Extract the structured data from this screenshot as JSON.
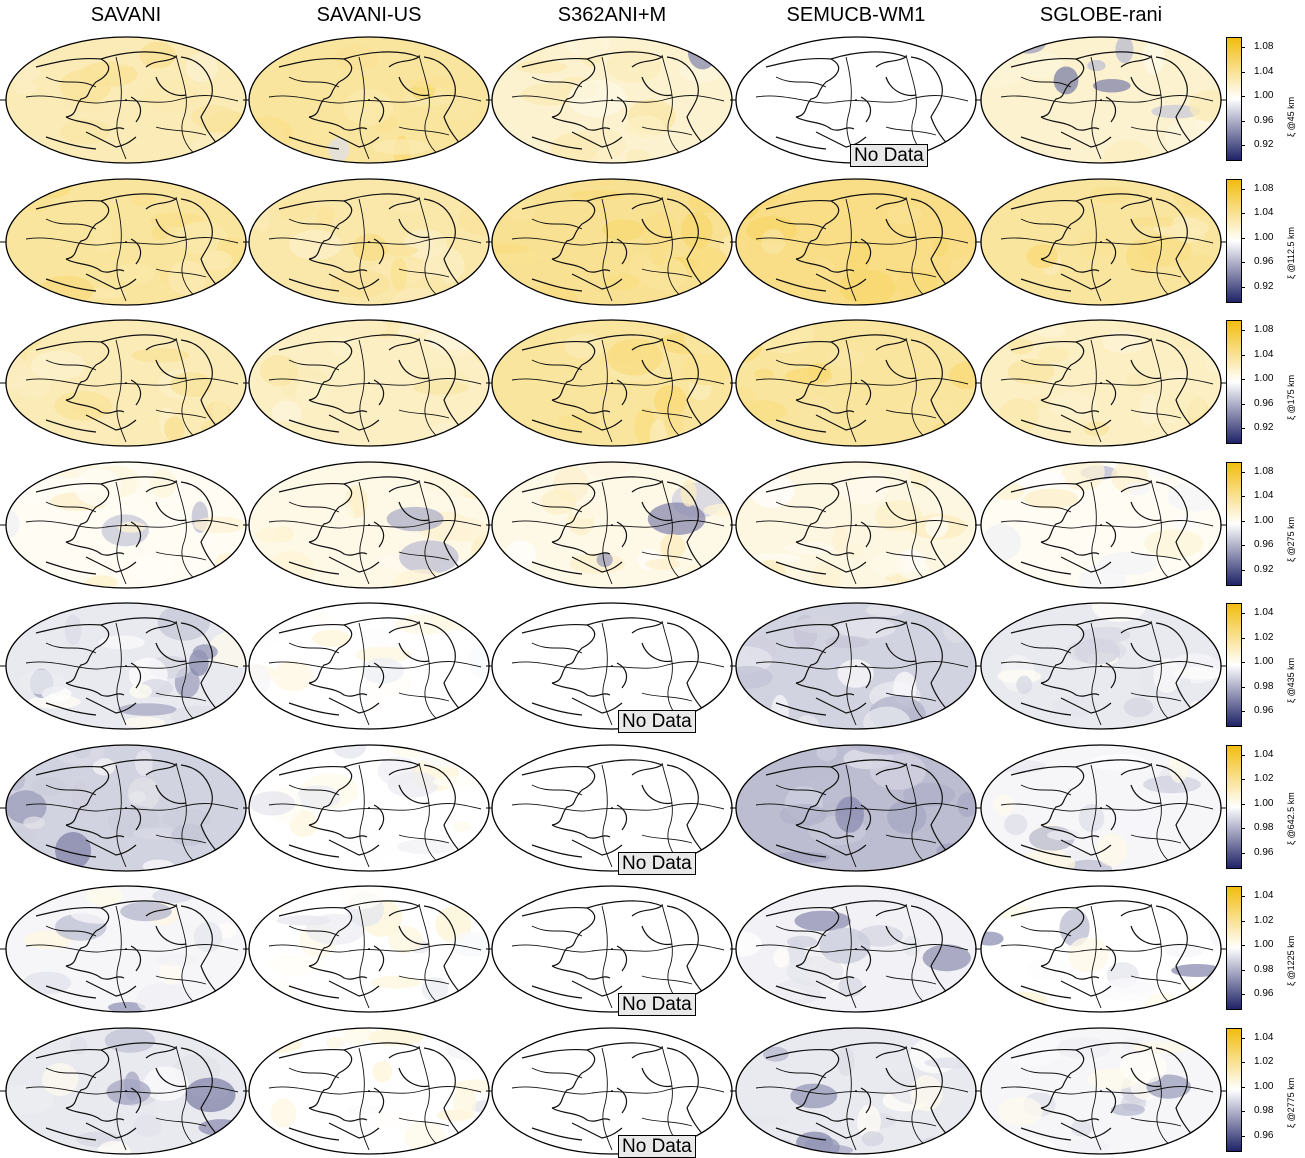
{
  "columns": [
    "SAVANI",
    "SAVANI-US",
    "S362ANI+M",
    "SEMUCB-WM1",
    "SGLOBE-rani"
  ],
  "no_data_label": "No Data",
  "colors": {
    "high": "#f2bd0f",
    "mid": "#ffffff",
    "low": "#1f2266"
  },
  "rows": [
    {
      "label": "ξ @45 km",
      "ticks": [
        "1.08",
        "1.04",
        "1.00",
        "0.96",
        "0.92"
      ],
      "range": [
        0.9,
        1.1
      ],
      "cells": [
        {
          "mean": 1.03,
          "blue": 0.05,
          "nodata": false
        },
        {
          "mean": 1.04,
          "blue": 0.02,
          "nodata": false
        },
        {
          "mean": 1.02,
          "blue": 0.15,
          "nodata": false
        },
        {
          "mean": 1.0,
          "blue": 0.0,
          "nodata": true
        },
        {
          "mean": 1.02,
          "blue": 0.45,
          "nodata": false
        }
      ]
    },
    {
      "label": "ξ @112.5 km",
      "ticks": [
        "1.08",
        "1.04",
        "1.00",
        "0.96",
        "0.92"
      ],
      "range": [
        0.9,
        1.1
      ],
      "cells": [
        {
          "mean": 1.04,
          "blue": 0.0,
          "nodata": false
        },
        {
          "mean": 1.035,
          "blue": 0.0,
          "nodata": false
        },
        {
          "mean": 1.045,
          "blue": 0.0,
          "nodata": false
        },
        {
          "mean": 1.05,
          "blue": 0.0,
          "nodata": false
        },
        {
          "mean": 1.04,
          "blue": 0.0,
          "nodata": false
        }
      ]
    },
    {
      "label": "ξ @175 km",
      "ticks": [
        "1.08",
        "1.04",
        "1.00",
        "0.96",
        "0.92"
      ],
      "range": [
        0.9,
        1.1
      ],
      "cells": [
        {
          "mean": 1.03,
          "blue": 0.0,
          "nodata": false
        },
        {
          "mean": 1.025,
          "blue": 0.02,
          "nodata": false
        },
        {
          "mean": 1.04,
          "blue": 0.0,
          "nodata": false
        },
        {
          "mean": 1.04,
          "blue": 0.0,
          "nodata": false
        },
        {
          "mean": 1.025,
          "blue": 0.0,
          "nodata": false
        }
      ]
    },
    {
      "label": "ξ @275 km",
      "ticks": [
        "1.08",
        "1.04",
        "1.00",
        "0.96",
        "0.92"
      ],
      "range": [
        0.9,
        1.1
      ],
      "cells": [
        {
          "mean": 1.005,
          "blue": 0.1,
          "nodata": false
        },
        {
          "mean": 1.01,
          "blue": 0.1,
          "nodata": false
        },
        {
          "mean": 1.01,
          "blue": 0.1,
          "nodata": false
        },
        {
          "mean": 1.012,
          "blue": 0.02,
          "nodata": false
        },
        {
          "mean": 1.005,
          "blue": 0.08,
          "nodata": false
        }
      ]
    },
    {
      "label": "ξ @435 km",
      "ticks": [
        "1.04",
        "1.02",
        "1.00",
        "0.98",
        "0.96"
      ],
      "range": [
        0.95,
        1.05
      ],
      "cells": [
        {
          "mean": 0.995,
          "blue": 0.35,
          "nodata": false
        },
        {
          "mean": 1.0,
          "blue": 0.04,
          "nodata": false
        },
        {
          "mean": 1.0,
          "blue": 0.0,
          "nodata": true
        },
        {
          "mean": 0.99,
          "blue": 0.35,
          "nodata": false
        },
        {
          "mean": 0.995,
          "blue": 0.25,
          "nodata": false
        }
      ]
    },
    {
      "label": "ξ @642.5 km",
      "ticks": [
        "1.04",
        "1.02",
        "1.00",
        "0.98",
        "0.96"
      ],
      "range": [
        0.95,
        1.05
      ],
      "cells": [
        {
          "mean": 0.99,
          "blue": 0.4,
          "nodata": false
        },
        {
          "mean": 1.0,
          "blue": 0.02,
          "nodata": false
        },
        {
          "mean": 1.0,
          "blue": 0.0,
          "nodata": true
        },
        {
          "mean": 0.985,
          "blue": 0.5,
          "nodata": false
        },
        {
          "mean": 0.998,
          "blue": 0.15,
          "nodata": false
        }
      ]
    },
    {
      "label": "ξ @1225 km",
      "ticks": [
        "1.04",
        "1.02",
        "1.00",
        "0.98",
        "0.96"
      ],
      "range": [
        0.95,
        1.05
      ],
      "cells": [
        {
          "mean": 0.998,
          "blue": 0.3,
          "nodata": false
        },
        {
          "mean": 1.0,
          "blue": 0.0,
          "nodata": false
        },
        {
          "mean": 1.0,
          "blue": 0.0,
          "nodata": true
        },
        {
          "mean": 0.997,
          "blue": 0.25,
          "nodata": false
        },
        {
          "mean": 1.0,
          "blue": 0.1,
          "nodata": false
        }
      ]
    },
    {
      "label": "ξ @2775 km",
      "ticks": [
        "1.04",
        "1.02",
        "1.00",
        "0.98",
        "0.96"
      ],
      "range": [
        0.95,
        1.05
      ],
      "cells": [
        {
          "mean": 0.995,
          "blue": 0.4,
          "nodata": false
        },
        {
          "mean": 1.0,
          "blue": 0.05,
          "nodata": false
        },
        {
          "mean": 1.0,
          "blue": 0.0,
          "nodata": true
        },
        {
          "mean": 0.995,
          "blue": 0.5,
          "nodata": false
        },
        {
          "mean": 0.998,
          "blue": 0.2,
          "nodata": false
        }
      ]
    }
  ],
  "chart_data": {
    "type": "heatmap",
    "title": "",
    "columns": [
      "SAVANI",
      "SAVANI-US",
      "S362ANI+M",
      "SEMUCB-WM1",
      "SGLOBE-rani"
    ],
    "rows": [
      "ξ @45 km",
      "ξ @112.5 km",
      "ξ @175 km",
      "ξ @275 km",
      "ξ @435 km",
      "ξ @642.5 km",
      "ξ @1225 km",
      "ξ @2775 km"
    ],
    "colorbar_ticks_upper": [
      "1.08",
      "1.04",
      "1.00",
      "0.96",
      "0.92"
    ],
    "colorbar_ticks_lower": [
      "1.04",
      "1.02",
      "1.00",
      "0.98",
      "0.96"
    ],
    "no_data": [
      [
        0,
        3
      ],
      [
        4,
        2
      ],
      [
        5,
        2
      ],
      [
        6,
        2
      ],
      [
        7,
        2
      ]
    ]
  }
}
